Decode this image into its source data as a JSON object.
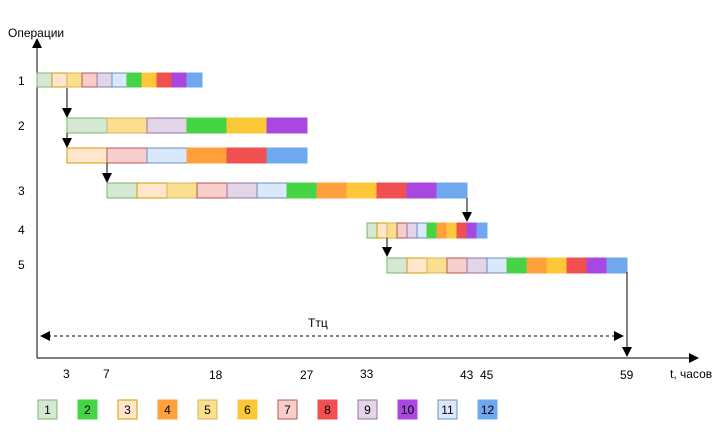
{
  "y_axis_label": "Операции",
  "x_axis_label": "t, часов",
  "cycle_label": "Ттц",
  "operation_labels": [
    "1",
    "2",
    "3",
    "4",
    "5"
  ],
  "time_ticks": [
    "3",
    "7",
    "18",
    "27",
    "33",
    "43",
    "45",
    "59"
  ],
  "colors": {
    "1": {
      "fill": "#d5e8d4",
      "stroke": "#82b366"
    },
    "2": {
      "fill": "#44d444",
      "stroke": "#44d444"
    },
    "3": {
      "fill": "#ffe6cc",
      "stroke": "#d79b00"
    },
    "4": {
      "fill": "#ffa03c",
      "stroke": "#ffa03c"
    },
    "5": {
      "fill": "#fadf90",
      "stroke": "#d6b656"
    },
    "6": {
      "fill": "#fcc838",
      "stroke": "#fcc838"
    },
    "7": {
      "fill": "#f8cecc",
      "stroke": "#b85450"
    },
    "8": {
      "fill": "#f05050",
      "stroke": "#f05050"
    },
    "9": {
      "fill": "#e1d5e7",
      "stroke": "#9673a6"
    },
    "10": {
      "fill": "#a848e0",
      "stroke": "#a848e0"
    },
    "11": {
      "fill": "#dae8fc",
      "stroke": "#6c8ebf"
    },
    "12": {
      "fill": "#70a8f0",
      "stroke": "#70a8f0"
    }
  },
  "legend": [
    "1",
    "2",
    "3",
    "4",
    "5",
    "6",
    "7",
    "8",
    "9",
    "10",
    "11",
    "12"
  ],
  "bars": [
    {
      "operation": "1",
      "start": 0,
      "unit": 1.5,
      "items": [
        "1",
        "3",
        "5",
        "7",
        "9",
        "11",
        "2",
        "6",
        "8",
        "10",
        "12"
      ]
    },
    {
      "operation": "2",
      "start": 3,
      "unit": 4,
      "items": [
        "1",
        "5",
        "9",
        "2",
        "6",
        "10"
      ]
    },
    {
      "operation": "2",
      "start": 3,
      "unit": 4,
      "items": [
        "3",
        "7",
        "11",
        "4",
        "8",
        "12"
      ]
    },
    {
      "operation": "3",
      "start": 7,
      "unit": 3,
      "items": [
        "1",
        "3",
        "5",
        "7",
        "9",
        "11",
        "2",
        "4",
        "6",
        "8",
        "10",
        "12"
      ]
    },
    {
      "operation": "4",
      "start": 33,
      "unit": 1,
      "items": [
        "1",
        "3",
        "5",
        "7",
        "9",
        "11",
        "2",
        "4",
        "6",
        "8",
        "10",
        "12"
      ]
    },
    {
      "operation": "5",
      "start": 35,
      "unit": 2,
      "items": [
        "1",
        "3",
        "5",
        "7",
        "9",
        "11",
        "2",
        "4",
        "6",
        "8",
        "10",
        "12"
      ]
    }
  ]
}
